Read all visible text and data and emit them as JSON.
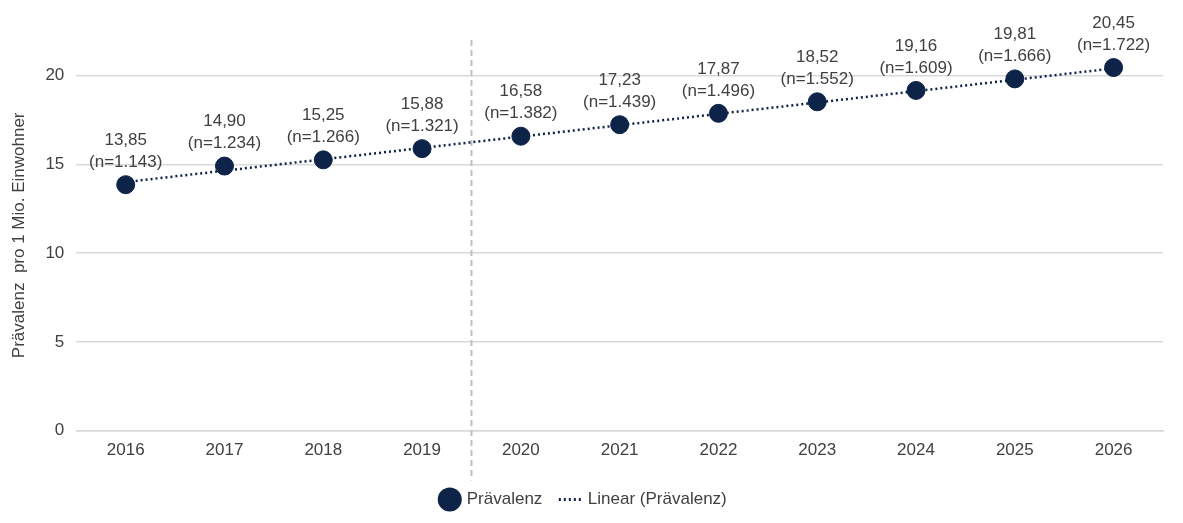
{
  "chart_data": {
    "type": "scatter",
    "ylabel": "Prävalenz  pro 1 Mio. Einwohner",
    "xlim": [
      2015.5,
      2026.5
    ],
    "xticks": [
      2016,
      2017,
      2018,
      2019,
      2020,
      2021,
      2022,
      2023,
      2024,
      2025,
      2026
    ],
    "ylim": [
      0,
      22
    ],
    "yticks": [
      0,
      5,
      10,
      15,
      20
    ],
    "grid": "y",
    "legend": "bottom",
    "ref_lines": [
      {
        "axis": "x",
        "value": 2019.5,
        "color": "#bfbfbf",
        "line_style": "dashed"
      }
    ],
    "series": [
      {
        "name": "Prävalenz",
        "color": "#0d2347",
        "marker": "circle",
        "x": [
          2016,
          2017,
          2018,
          2019,
          2020,
          2021,
          2022,
          2023,
          2024,
          2025,
          2026
        ],
        "values": [
          13.85,
          14.9,
          15.25,
          15.88,
          16.58,
          17.23,
          17.87,
          18.52,
          19.16,
          19.81,
          20.45
        ],
        "value_labels": [
          "13,85\n(n=1.143)",
          "14,90\n(n=1.234)",
          "15,25\n(n=1.266)",
          "15,88\n(n=1.321)",
          "16,58\n(n=1.382)",
          "17,23\n(n=1.439)",
          "17,87\n(n=1.496)",
          "18,52\n(n=1.552)",
          "19,16\n(n=1.609)",
          "19,81\n(n=1.666)",
          "20,45\n(n=1.722)"
        ]
      },
      {
        "name": "Linear (Prävalenz)",
        "type": "line",
        "color": "#0d2347",
        "marker": "none",
        "line_style": "dotted",
        "x": [
          2016,
          2026
        ],
        "values": [
          14.0,
          20.4
        ]
      }
    ]
  }
}
